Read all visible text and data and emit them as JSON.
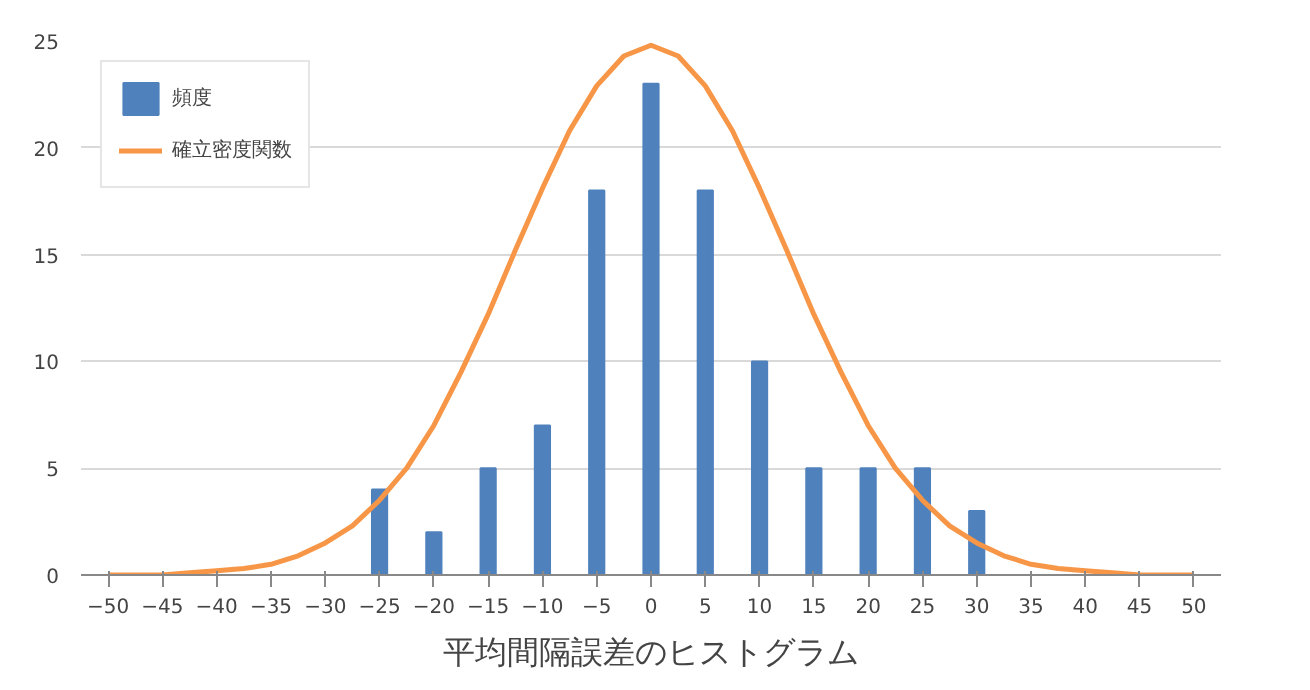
{
  "chart_data": {
    "type": "bar",
    "title": "平均間隔誤差のヒストグラム",
    "xlim": [
      -52.5,
      52.5
    ],
    "xticks": [
      -50,
      -45,
      -40,
      -35,
      -30,
      -25,
      -20,
      -15,
      -10,
      -5,
      0,
      5,
      10,
      15,
      20,
      25,
      30,
      35,
      40,
      45,
      50
    ],
    "ylim": [
      0,
      25
    ],
    "yticks": [
      0,
      5,
      10,
      15,
      20,
      25
    ],
    "grid": "y",
    "legend": "top left",
    "series": [
      {
        "name": "頻度",
        "color": "#4f81bd",
        "x": [
          -25,
          -20,
          -15,
          -10,
          -5,
          0,
          5,
          10,
          15,
          20,
          25,
          30
        ],
        "values": [
          4,
          2,
          5,
          7,
          18,
          23,
          18,
          10,
          5,
          5,
          5,
          3
        ]
      },
      {
        "name": "確立密度関数",
        "type": "line",
        "color": "#f79646",
        "x": [
          -50,
          -47.5,
          -45,
          -42.5,
          -40,
          -37.5,
          -35,
          -32.5,
          -30,
          -27.5,
          -25,
          -22.5,
          -20,
          -17.5,
          -15,
          -12.5,
          -10,
          -7.5,
          -5,
          -2.5,
          0,
          2.5,
          5,
          7.5,
          10,
          12.5,
          15,
          17.5,
          20,
          22.5,
          25,
          27.5,
          30,
          32.5,
          35,
          37.5,
          40,
          42.5,
          45,
          47.5,
          50
        ],
        "values": [
          0.0,
          0.0,
          0.0,
          0.1,
          0.2,
          0.3,
          0.5,
          0.9,
          1.5,
          2.3,
          3.5,
          5.0,
          7.0,
          9.5,
          12.2,
          15.2,
          18.1,
          20.8,
          22.9,
          24.3,
          24.8,
          24.3,
          22.9,
          20.8,
          18.1,
          15.2,
          12.2,
          9.5,
          7.0,
          5.0,
          3.5,
          2.3,
          1.5,
          0.9,
          0.5,
          0.3,
          0.2,
          0.1,
          0.0,
          0.0,
          0.0
        ]
      }
    ]
  }
}
